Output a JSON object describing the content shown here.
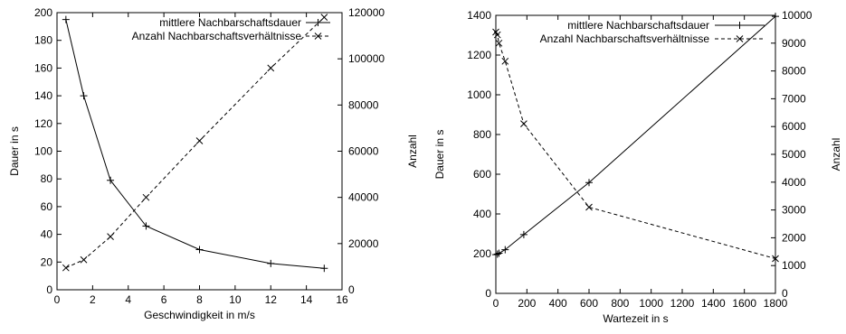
{
  "chart_data": [
    {
      "type": "line",
      "xlabel": "Geschwindigkeit in m/s",
      "ylabel": "Dauer in s",
      "y2label": "Anzahl",
      "xlim": [
        0,
        16
      ],
      "ylim": [
        0,
        200
      ],
      "y2lim": [
        0,
        120000
      ],
      "xticks": [
        0,
        2,
        4,
        6,
        8,
        10,
        12,
        14,
        16
      ],
      "yticks": [
        0,
        20,
        40,
        60,
        80,
        100,
        120,
        140,
        160,
        180,
        200
      ],
      "y2ticks": [
        0,
        20000,
        40000,
        60000,
        80000,
        100000,
        120000
      ],
      "grid": false,
      "legend_position": "top-right",
      "series": [
        {
          "name": "mittlere Nachbarschaftsdauer",
          "axis": "left",
          "style": "solid",
          "marker": "plus",
          "x": [
            0.5,
            1.5,
            3,
            5,
            8,
            12,
            15
          ],
          "values": [
            195,
            140,
            79,
            46,
            29,
            19,
            15.5
          ]
        },
        {
          "name": "Anzahl Nachbarschaftsverhältnisse",
          "axis": "right",
          "style": "dashed",
          "marker": "cross",
          "x": [
            0.5,
            1.5,
            3,
            5,
            8,
            12,
            15
          ],
          "values": [
            9500,
            13000,
            23000,
            40000,
            64500,
            96000,
            118000
          ]
        }
      ]
    },
    {
      "type": "line",
      "xlabel": "Wartezeit in s",
      "ylabel": "Dauer in s",
      "y2label": "Anzahl",
      "xlim": [
        0,
        1800
      ],
      "ylim": [
        0,
        1400
      ],
      "y2lim": [
        0,
        10000
      ],
      "xticks": [
        0,
        200,
        400,
        600,
        800,
        1000,
        1200,
        1400,
        1600,
        1800
      ],
      "yticks": [
        0,
        200,
        400,
        600,
        800,
        1000,
        1200,
        1400
      ],
      "y2ticks": [
        0,
        1000,
        2000,
        3000,
        4000,
        5000,
        6000,
        7000,
        8000,
        9000,
        10000
      ],
      "grid": false,
      "legend_position": "top-right",
      "series": [
        {
          "name": "mittlere Nachbarschaftsdauer",
          "axis": "left",
          "style": "solid",
          "marker": "plus",
          "x": [
            0,
            10,
            20,
            60,
            180,
            600,
            1800
          ],
          "values": [
            195,
            198,
            202,
            220,
            296,
            558,
            1395
          ]
        },
        {
          "name": "Anzahl Nachbarschaftsverhältnisse",
          "axis": "right",
          "style": "dashed",
          "marker": "cross",
          "x": [
            0,
            10,
            20,
            60,
            180,
            600,
            1800
          ],
          "values": [
            9400,
            9300,
            9000,
            8350,
            6100,
            3100,
            1250
          ]
        }
      ]
    }
  ]
}
